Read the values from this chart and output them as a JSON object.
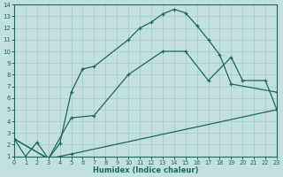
{
  "xlabel": "Humidex (Indice chaleur)",
  "bg_color": "#c2e0e0",
  "grid_color": "#aacccc",
  "line_color": "#1a6b5a",
  "xlim": [
    0,
    23
  ],
  "ylim": [
    1,
    14
  ],
  "xticks": [
    0,
    1,
    2,
    3,
    4,
    5,
    6,
    7,
    8,
    9,
    10,
    11,
    12,
    13,
    14,
    15,
    16,
    17,
    18,
    19,
    20,
    21,
    22,
    23
  ],
  "yticks": [
    1,
    2,
    3,
    4,
    5,
    6,
    7,
    8,
    9,
    10,
    11,
    12,
    13,
    14
  ],
  "line1_x": [
    0,
    1,
    2,
    3,
    4,
    5,
    6,
    7,
    10,
    11,
    12,
    13,
    14,
    15,
    16,
    17,
    18,
    19,
    23
  ],
  "line1_y": [
    2.5,
    1.0,
    2.2,
    0.8,
    2.1,
    6.5,
    8.5,
    8.7,
    11.0,
    12.0,
    12.5,
    13.2,
    13.6,
    13.3,
    12.2,
    11.0,
    9.7,
    7.2,
    6.5
  ],
  "line2_x": [
    0,
    3,
    5,
    7,
    10,
    13,
    15,
    17,
    19,
    20,
    22,
    23
  ],
  "line2_y": [
    2.5,
    0.8,
    4.3,
    4.5,
    8.0,
    10.0,
    10.0,
    7.5,
    9.5,
    7.5,
    7.5,
    5.0
  ],
  "line3_x": [
    0,
    3,
    5,
    23
  ],
  "line3_y": [
    2.5,
    0.8,
    1.2,
    5.0
  ]
}
